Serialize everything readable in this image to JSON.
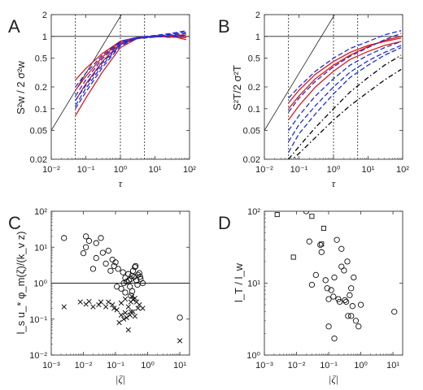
{
  "chart_data": [
    {
      "panel": "A",
      "type": "line",
      "xlabel": "τ",
      "ylabel": "S²w / 2 σ²w",
      "xscale": "log",
      "yscale": "log",
      "xlim": [
        0.01,
        100
      ],
      "ylim": [
        0.02,
        2
      ],
      "xticks": [
        "10⁻²",
        "10⁻¹",
        "10⁰",
        "10¹",
        "10²"
      ],
      "yticks": [
        "0.02",
        "0.05",
        "0.1",
        "0.2",
        "0.5",
        "1",
        "2"
      ],
      "reference": {
        "horizontal_y": 1,
        "vertical_x": [
          0.05,
          1,
          5
        ],
        "slope_line": [
          [
            0.01,
            0.05
          ],
          [
            3,
            4.5
          ]
        ]
      },
      "series_styles": [
        {
          "color": "#1f2fd6",
          "dash": "dashed"
        },
        {
          "color": "#e01818",
          "dash": "solid"
        }
      ],
      "series": [
        {
          "color": "#e01818",
          "x": [
            0.05,
            0.1,
            0.3,
            1,
            3,
            10,
            30,
            80
          ],
          "y": [
            0.25,
            0.36,
            0.58,
            0.86,
            0.97,
            1.0,
            1.02,
            1.0
          ]
        },
        {
          "color": "#e01818",
          "x": [
            0.05,
            0.1,
            0.3,
            1,
            3,
            10,
            30,
            80
          ],
          "y": [
            0.08,
            0.14,
            0.32,
            0.7,
            0.93,
            1.0,
            0.98,
            0.96
          ]
        },
        {
          "color": "#e01818",
          "x": [
            0.05,
            0.1,
            0.3,
            1,
            3,
            10,
            30,
            80
          ],
          "y": [
            0.13,
            0.22,
            0.45,
            0.8,
            0.95,
            1.02,
            1.01,
            0.9
          ]
        },
        {
          "color": "#e01818",
          "x": [
            0.05,
            0.1,
            0.3,
            1,
            3,
            10,
            30,
            80
          ],
          "y": [
            0.18,
            0.28,
            0.52,
            0.84,
            0.96,
            0.98,
            1.03,
            1.05
          ]
        },
        {
          "color": "#1f2fd6",
          "x": [
            0.05,
            0.1,
            0.3,
            1,
            3,
            10,
            30,
            80
          ],
          "y": [
            0.11,
            0.19,
            0.4,
            0.77,
            0.95,
            1.02,
            1.05,
            1.1
          ]
        },
        {
          "color": "#1f2fd6",
          "x": [
            0.05,
            0.1,
            0.3,
            1,
            3,
            10,
            30,
            80
          ],
          "y": [
            0.15,
            0.25,
            0.49,
            0.82,
            0.96,
            1.0,
            1.08,
            1.15
          ]
        },
        {
          "color": "#1f2fd6",
          "x": [
            0.05,
            0.1,
            0.3,
            1,
            3,
            10,
            30,
            80
          ],
          "y": [
            0.1,
            0.17,
            0.37,
            0.74,
            0.94,
            1.0,
            0.97,
            1.05
          ]
        },
        {
          "color": "#1f2fd6",
          "x": [
            0.05,
            0.1,
            0.3,
            1,
            3,
            10,
            30,
            80
          ],
          "y": [
            0.2,
            0.31,
            0.55,
            0.85,
            0.97,
            1.03,
            1.1,
            1.2
          ]
        },
        {
          "color": "#1f2fd6",
          "x": [
            0.05,
            0.1,
            0.3,
            1,
            3,
            10,
            30,
            80
          ],
          "y": [
            0.13,
            0.21,
            0.43,
            0.78,
            0.93,
            0.98,
            1.04,
            1.0
          ]
        }
      ]
    },
    {
      "panel": "B",
      "type": "line",
      "xlabel": "τ",
      "ylabel": "S²T/2 σ²T",
      "xscale": "log",
      "yscale": "log",
      "xlim": [
        0.01,
        100
      ],
      "ylim": [
        0.02,
        2
      ],
      "xticks": [
        "10⁻²",
        "10⁻¹",
        "10⁰",
        "10¹",
        "10²"
      ],
      "yticks": [
        "0.02",
        "0.05",
        "0.1",
        "0.2",
        "0.5",
        "1",
        "2"
      ],
      "reference": {
        "horizontal_y": 1,
        "vertical_x": [
          0.05,
          1,
          5
        ],
        "slope_line": [
          [
            0.01,
            0.05
          ],
          [
            3,
            4.5
          ]
        ]
      },
      "series_styles": [
        {
          "color": "#1f2fd6",
          "dash": "dashed"
        },
        {
          "color": "#e01818",
          "dash": "solid"
        },
        {
          "color": "#000000",
          "dash": "dashdot"
        }
      ],
      "series": [
        {
          "color": "#e01818",
          "x": [
            0.05,
            0.1,
            0.3,
            1,
            3,
            10,
            30,
            90
          ],
          "y": [
            0.12,
            0.18,
            0.3,
            0.45,
            0.6,
            0.75,
            0.85,
            0.95
          ]
        },
        {
          "color": "#e01818",
          "x": [
            0.05,
            0.1,
            0.3,
            1,
            3,
            10,
            30,
            90
          ],
          "y": [
            0.07,
            0.11,
            0.2,
            0.33,
            0.48,
            0.62,
            0.75,
            0.85
          ]
        },
        {
          "color": "#e01818",
          "x": [
            0.05,
            0.1,
            0.3,
            1,
            3,
            10,
            30,
            90
          ],
          "y": [
            0.1,
            0.15,
            0.26,
            0.4,
            0.55,
            0.72,
            0.88,
            1.0
          ]
        },
        {
          "color": "#1f2fd6",
          "x": [
            0.05,
            0.1,
            0.3,
            1,
            3,
            10,
            30,
            90
          ],
          "y": [
            0.09,
            0.14,
            0.24,
            0.38,
            0.53,
            0.7,
            0.9,
            1.1
          ]
        },
        {
          "color": "#1f2fd6",
          "x": [
            0.05,
            0.1,
            0.3,
            1,
            3,
            10,
            30,
            90
          ],
          "y": [
            0.05,
            0.08,
            0.15,
            0.26,
            0.4,
            0.55,
            0.7,
            0.85
          ]
        },
        {
          "color": "#1f2fd6",
          "x": [
            0.05,
            0.1,
            0.3,
            1,
            3,
            10,
            30,
            90
          ],
          "y": [
            0.035,
            0.06,
            0.11,
            0.2,
            0.32,
            0.46,
            0.6,
            0.75
          ]
        },
        {
          "color": "#1f2fd6",
          "x": [
            0.05,
            0.1,
            0.3,
            1,
            3,
            10,
            30,
            90
          ],
          "y": [
            0.025,
            0.045,
            0.085,
            0.16,
            0.27,
            0.4,
            0.55,
            0.7
          ]
        },
        {
          "color": "#1f2fd6",
          "x": [
            0.05,
            0.1,
            0.3,
            1,
            3,
            10,
            30,
            90
          ],
          "y": [
            0.14,
            0.2,
            0.33,
            0.5,
            0.68,
            0.85,
            1.05,
            1.2
          ]
        },
        {
          "color": "#000000",
          "x": [
            0.05,
            0.1,
            0.3,
            1,
            3,
            10,
            30,
            90
          ],
          "y": [
            0.018,
            0.024,
            0.04,
            0.07,
            0.11,
            0.17,
            0.25,
            0.35
          ]
        },
        {
          "color": "#000000",
          "x": [
            0.05,
            0.1,
            0.3,
            1,
            3,
            10,
            30,
            90
          ],
          "y": [
            0.02,
            0.03,
            0.055,
            0.1,
            0.17,
            0.27,
            0.4,
            0.55
          ]
        }
      ]
    },
    {
      "panel": "C",
      "type": "scatter",
      "xlabel": "|ζ|",
      "ylabel": "l_s u_* φ_m(ζ)/(k_v z)",
      "xscale": "log",
      "yscale": "log",
      "xlim": [
        0.001,
        20
      ],
      "ylim": [
        0.01,
        100
      ],
      "xticks": [
        "10⁻³",
        "10⁻²",
        "10⁻¹",
        "10⁰",
        "10¹"
      ],
      "yticks": [
        "10⁻²",
        "10⁻¹",
        "10⁰",
        "10¹",
        "10²"
      ],
      "reference": {
        "horizontal_y": 1
      },
      "series": [
        {
          "marker": "circle",
          "x": [
            0.0025,
            0.01,
            0.012,
            0.015,
            0.02,
            0.025,
            0.035,
            0.05,
            0.06,
            0.08,
            0.09,
            0.1,
            0.12,
            0.15,
            0.18,
            0.2,
            0.22,
            0.25,
            0.28,
            0.3,
            0.32,
            0.35,
            0.38,
            0.4,
            0.45,
            0.5,
            0.55,
            0.6,
            0.7,
            0.012,
            0.025,
            0.04,
            0.07,
            0.11,
            0.17,
            0.26,
            0.33,
            0.42,
            0.48,
            0.58,
            0.2,
            0.3,
            10
          ],
          "y": [
            18,
            6.8,
            20,
            15,
            2.5,
            13,
            18,
            3.5,
            8,
            4.5,
            3,
            3.8,
            2.5,
            0.7,
            1.0,
            1.4,
            1.1,
            1.8,
            0.8,
            1.3,
            1.6,
            2.2,
            1.5,
            2.8,
            1.2,
            1.7,
            1.9,
            1.3,
            1.0,
            10,
            5,
            7,
            2.2,
            0.8,
            2,
            1.2,
            0.6,
            3,
            0.9,
            1.5,
            0.55,
            0.45,
            0.11
          ]
        },
        {
          "marker": "cross",
          "x": [
            0.0025,
            0.008,
            0.012,
            0.015,
            0.02,
            0.03,
            0.035,
            0.05,
            0.06,
            0.08,
            0.09,
            0.11,
            0.13,
            0.15,
            0.18,
            0.2,
            0.22,
            0.25,
            0.28,
            0.3,
            0.32,
            0.35,
            0.4,
            0.45,
            0.5,
            0.55,
            0.7,
            0.15,
            0.2,
            0.25,
            0.3,
            0.35,
            0.4,
            10
          ],
          "y": [
            0.22,
            0.3,
            0.26,
            0.31,
            0.22,
            0.25,
            0.3,
            0.22,
            0.3,
            0.25,
            0.2,
            0.18,
            0.08,
            0.13,
            0.1,
            0.15,
            0.11,
            0.05,
            0.13,
            0.16,
            0.43,
            0.35,
            0.38,
            0.3,
            0.2,
            0.25,
            0.2,
            0.28,
            0.36,
            0.22,
            0.3,
            0.16,
            0.12,
            0.025
          ]
        }
      ]
    },
    {
      "panel": "D",
      "type": "scatter",
      "xlabel": "|ζ|",
      "ylabel": "l_T / l_w",
      "xscale": "log",
      "yscale": "log",
      "xlim": [
        0.001,
        20
      ],
      "ylim": [
        1,
        100
      ],
      "xticks": [
        "10⁻³",
        "10⁻²",
        "10⁻¹",
        "10⁰",
        "10¹"
      ],
      "yticks": [
        "10⁰",
        "10¹",
        "10²"
      ],
      "series": [
        {
          "marker": "circle",
          "x": [
            0.02,
            0.025,
            0.03,
            0.04,
            0.055,
            0.06,
            0.08,
            0.09,
            0.1,
            0.12,
            0.14,
            0.15,
            0.18,
            0.2,
            0.22,
            0.25,
            0.3,
            0.32,
            0.35,
            0.38,
            0.4,
            0.45,
            0.5,
            0.55,
            0.6,
            0.7,
            0.85,
            1.0,
            0.1,
            0.15,
            0.25,
            0.5,
            11
          ],
          "y": [
            100,
            38,
            9.5,
            13,
            34,
            27,
            11,
            8.5,
            2.5,
            8,
            6.5,
            12,
            40,
            6,
            5.5,
            30,
            15,
            5.8,
            5.5,
            20,
            3.5,
            6.8,
            3.5,
            4.8,
            12,
            3,
            2.5,
            5,
            6,
            1.7,
            17,
            8.5,
            4
          ]
        },
        {
          "marker": "square",
          "x": [
            0.0025,
            0.008,
            0.03,
            0.06,
            0.07
          ],
          "y": [
            90,
            23,
            85,
            35,
            58
          ]
        }
      ]
    }
  ]
}
